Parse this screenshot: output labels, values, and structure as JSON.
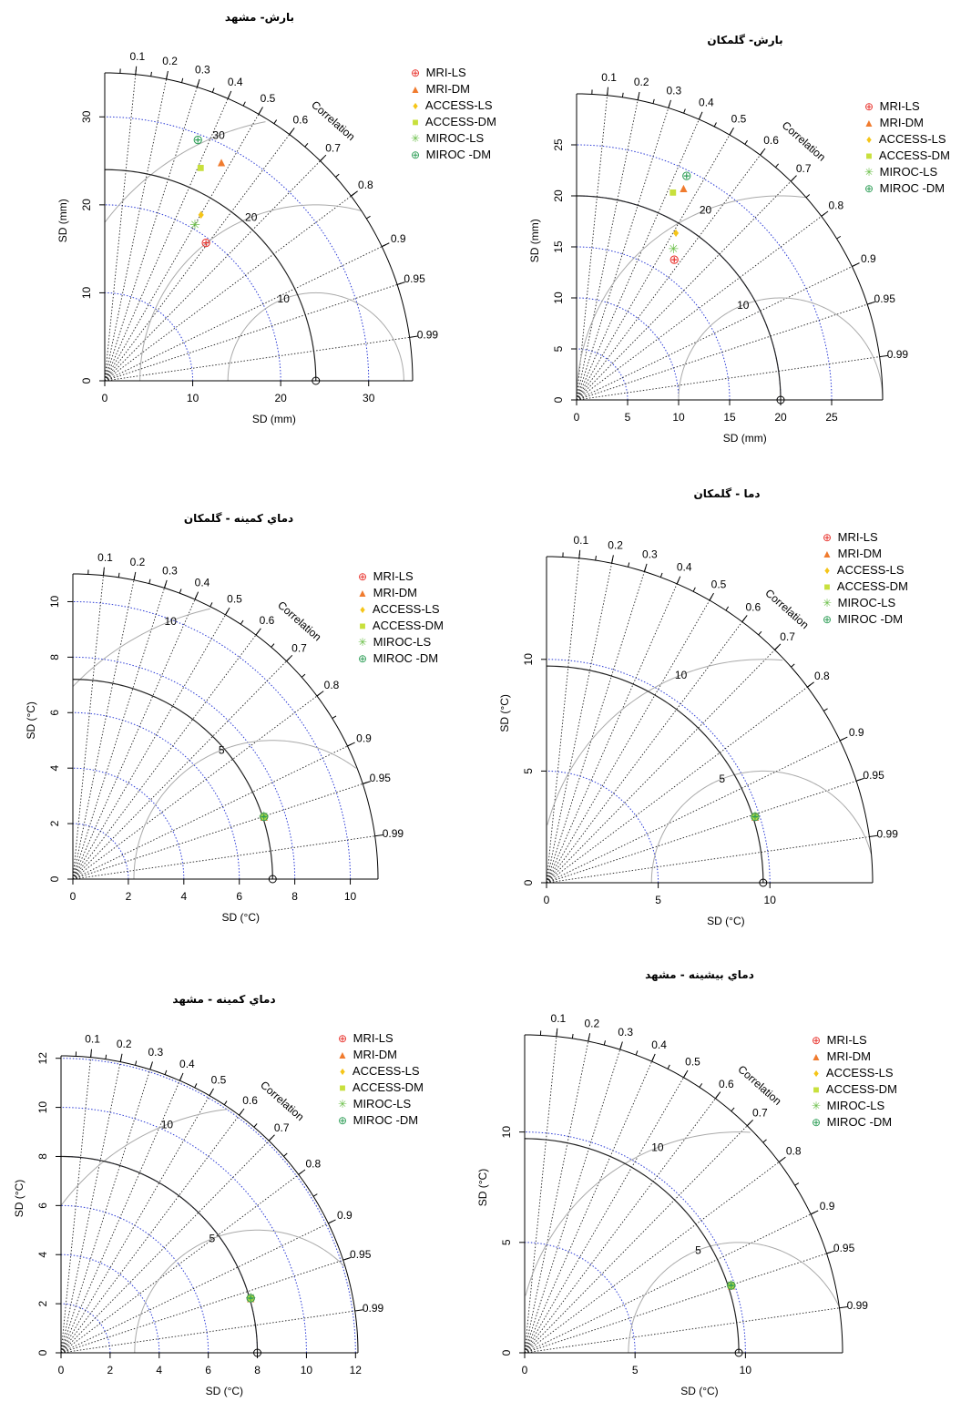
{
  "chart_data": [
    {
      "type": "taylor",
      "title": "بارش- مشهد",
      "xlabel": "SD (mm)",
      "ylabel": "SD (mm)",
      "sd_max": 35,
      "sd_ticks": [
        0,
        10,
        20,
        30
      ],
      "ref_sd": 24,
      "rms_levels": [
        10,
        20,
        30
      ],
      "correlation_label": "Correlation",
      "correlation_ticks": [
        0.1,
        0.2,
        0.3,
        0.4,
        0.5,
        0.6,
        0.7,
        0.8,
        0.9,
        0.95,
        0.99
      ],
      "legend_position": "top-right",
      "series": [
        {
          "name": "MRI-LS",
          "sd": 19.5,
          "corr": 0.59
        },
        {
          "name": "MRI-DM",
          "sd": 28.2,
          "corr": 0.47
        },
        {
          "name": "ACCESS-LS",
          "sd": 21.9,
          "corr": 0.5
        },
        {
          "name": "ACCESS-DM",
          "sd": 26.6,
          "corr": 0.41
        },
        {
          "name": "MIROC-LS",
          "sd": 20.5,
          "corr": 0.5
        },
        {
          "name": "MIROC -DM",
          "sd": 29.4,
          "corr": 0.36
        }
      ]
    },
    {
      "type": "taylor",
      "title": "بارش- گلمکان",
      "xlabel": "SD (mm)",
      "ylabel": "SD (mm)",
      "sd_max": 30,
      "sd_ticks": [
        0,
        5,
        10,
        15,
        20,
        25
      ],
      "ref_sd": 20,
      "rms_levels": [
        10,
        20
      ],
      "correlation_label": "Correlation",
      "correlation_ticks": [
        0.1,
        0.2,
        0.3,
        0.4,
        0.5,
        0.6,
        0.7,
        0.8,
        0.9,
        0.95,
        0.99
      ],
      "legend_position": "top-right",
      "series": [
        {
          "name": "MRI-LS",
          "sd": 16.8,
          "corr": 0.57
        },
        {
          "name": "MRI-DM",
          "sd": 23.3,
          "corr": 0.45
        },
        {
          "name": "ACCESS-LS",
          "sd": 19.1,
          "corr": 0.51
        },
        {
          "name": "ACCESS-DM",
          "sd": 22.5,
          "corr": 0.42
        },
        {
          "name": "MIROC-LS",
          "sd": 17.6,
          "corr": 0.54
        },
        {
          "name": "MIROC -DM",
          "sd": 24.5,
          "corr": 0.44
        }
      ]
    },
    {
      "type": "taylor",
      "title": "دماي کمينه - گلمکان",
      "xlabel": "SD (°C)",
      "ylabel": "SD (°C)",
      "sd_max": 11,
      "sd_ticks": [
        0,
        2,
        4,
        6,
        8,
        10
      ],
      "ref_sd": 7.2,
      "rms_levels": [
        5,
        10
      ],
      "correlation_label": "Correlation",
      "correlation_ticks": [
        0.1,
        0.2,
        0.3,
        0.4,
        0.5,
        0.6,
        0.7,
        0.8,
        0.9,
        0.95,
        0.99
      ],
      "legend_position": "top-right",
      "series": [
        {
          "name": "MRI-LS",
          "sd": 7.25,
          "corr": 0.95
        },
        {
          "name": "MRI-DM",
          "sd": 7.25,
          "corr": 0.95
        },
        {
          "name": "ACCESS-LS",
          "sd": 7.25,
          "corr": 0.95
        },
        {
          "name": "ACCESS-DM",
          "sd": 7.25,
          "corr": 0.95
        },
        {
          "name": "MIROC-LS",
          "sd": 7.25,
          "corr": 0.95
        },
        {
          "name": "MIROC -DM",
          "sd": 7.25,
          "corr": 0.95
        }
      ]
    },
    {
      "type": "taylor",
      "title": "دما - گلمکان",
      "xlabel": "SD (°C)",
      "ylabel": "SD (°C)",
      "sd_max": 14.6,
      "sd_ticks": [
        0,
        5,
        10
      ],
      "ref_sd": 9.7,
      "rms_levels": [
        5,
        10
      ],
      "correlation_label": "Correlation",
      "correlation_ticks": [
        0.1,
        0.2,
        0.3,
        0.4,
        0.5,
        0.6,
        0.7,
        0.8,
        0.9,
        0.95,
        0.99
      ],
      "legend_position": "top-right",
      "series": [
        {
          "name": "MRI-LS",
          "sd": 9.8,
          "corr": 0.953
        },
        {
          "name": "MRI-DM",
          "sd": 9.8,
          "corr": 0.953
        },
        {
          "name": "ACCESS-LS",
          "sd": 9.8,
          "corr": 0.953
        },
        {
          "name": "ACCESS-DM",
          "sd": 9.8,
          "corr": 0.953
        },
        {
          "name": "MIROC-LS",
          "sd": 9.8,
          "corr": 0.953
        },
        {
          "name": "MIROC -DM",
          "sd": 9.8,
          "corr": 0.953
        }
      ]
    },
    {
      "type": "taylor",
      "title": "دماي کمينه - مشهد",
      "xlabel": "SD (°C)",
      "ylabel": "SD (°C)",
      "sd_max": 12.1,
      "sd_ticks": [
        0,
        2,
        4,
        6,
        8,
        10,
        12
      ],
      "ref_sd": 8,
      "rms_levels": [
        5,
        10
      ],
      "correlation_label": "Correlation",
      "correlation_ticks": [
        0.1,
        0.2,
        0.3,
        0.4,
        0.5,
        0.6,
        0.7,
        0.8,
        0.9,
        0.95,
        0.99
      ],
      "legend_position": "top-right",
      "series": [
        {
          "name": "MRI-LS",
          "sd": 8.05,
          "corr": 0.96
        },
        {
          "name": "MRI-DM",
          "sd": 8.05,
          "corr": 0.96
        },
        {
          "name": "ACCESS-LS",
          "sd": 8.05,
          "corr": 0.96
        },
        {
          "name": "ACCESS-DM",
          "sd": 8.05,
          "corr": 0.96
        },
        {
          "name": "MIROC-LS",
          "sd": 8.05,
          "corr": 0.96
        },
        {
          "name": "MIROC -DM",
          "sd": 8.05,
          "corr": 0.96
        }
      ]
    },
    {
      "type": "taylor",
      "title": "دماي بيشينه - مشهد",
      "xlabel": "SD (°C)",
      "ylabel": "SD (°C)",
      "sd_max": 14.4,
      "sd_ticks": [
        0,
        5,
        10
      ],
      "ref_sd": 9.7,
      "rms_levels": [
        5,
        10
      ],
      "correlation_label": "Correlation",
      "correlation_ticks": [
        0.1,
        0.2,
        0.3,
        0.4,
        0.5,
        0.6,
        0.7,
        0.8,
        0.9,
        0.95,
        0.99
      ],
      "legend_position": "top-right",
      "series": [
        {
          "name": "MRI-LS",
          "sd": 9.85,
          "corr": 0.95
        },
        {
          "name": "MRI-DM",
          "sd": 9.85,
          "corr": 0.95
        },
        {
          "name": "ACCESS-LS",
          "sd": 9.85,
          "corr": 0.95
        },
        {
          "name": "ACCESS-DM",
          "sd": 9.85,
          "corr": 0.95
        },
        {
          "name": "MIROC-LS",
          "sd": 9.85,
          "corr": 0.95
        },
        {
          "name": "MIROC -DM",
          "sd": 9.85,
          "corr": 0.95
        }
      ]
    }
  ],
  "styles": [
    {
      "symbol": "⊕",
      "color": "#e8312b"
    },
    {
      "symbol": "▲",
      "color": "#f07b2e"
    },
    {
      "symbol": "♦",
      "color": "#f5c518"
    },
    {
      "symbol": "■",
      "color": "#c8e03c"
    },
    {
      "symbol": "✳",
      "color": "#6dc04b"
    },
    {
      "symbol": "⊕",
      "color": "#2e9e57"
    }
  ]
}
